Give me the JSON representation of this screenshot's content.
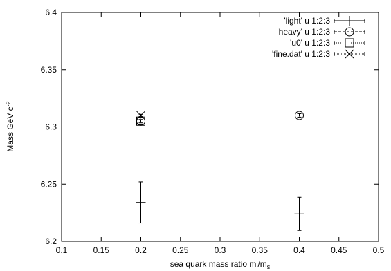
{
  "chart_data": {
    "type": "scatter",
    "title": "",
    "xlabel": "sea quark mass ratio m",
    "xlabel_sub1": "l",
    "xlabel_mid": "/m",
    "xlabel_sub2": "s",
    "ylabel": "Mass GeV c",
    "ylabel_sup": "-2",
    "xlim": [
      0.1,
      0.5
    ],
    "ylim": [
      6.2,
      6.4
    ],
    "xticks": [
      "0.1",
      "0.15",
      "0.2",
      "0.25",
      "0.3",
      "0.35",
      "0.4",
      "0.45",
      "0.5"
    ],
    "yticks": [
      "6.2",
      "6.25",
      "6.3",
      "6.35",
      "6.4"
    ],
    "grid": false,
    "legend_position": "top-right",
    "series": [
      {
        "name": "'light' u 1:2:3",
        "marker": "plus",
        "line": "solid",
        "points": [
          {
            "x": 0.2,
            "y": 6.234,
            "err": 0.018
          },
          {
            "x": 0.4,
            "y": 6.224,
            "err": 0.0145
          }
        ]
      },
      {
        "name": "'heavy' u 1:2:3",
        "marker": "circle",
        "line": "dashed",
        "points": [
          {
            "x": 0.2,
            "y": 6.305,
            "err": 0.0015
          },
          {
            "x": 0.4,
            "y": 6.31,
            "err": 0.0015
          }
        ]
      },
      {
        "name": "'u0' u 1:2:3",
        "marker": "square",
        "line": "dotted",
        "points": [
          {
            "x": 0.2,
            "y": 6.305,
            "err": 0.003
          }
        ]
      },
      {
        "name": "'fine.dat' u 1:2:3",
        "marker": "cross",
        "line": "dense-dotted",
        "points": [
          {
            "x": 0.2,
            "y": 6.31,
            "err": 0.001
          }
        ]
      }
    ]
  }
}
